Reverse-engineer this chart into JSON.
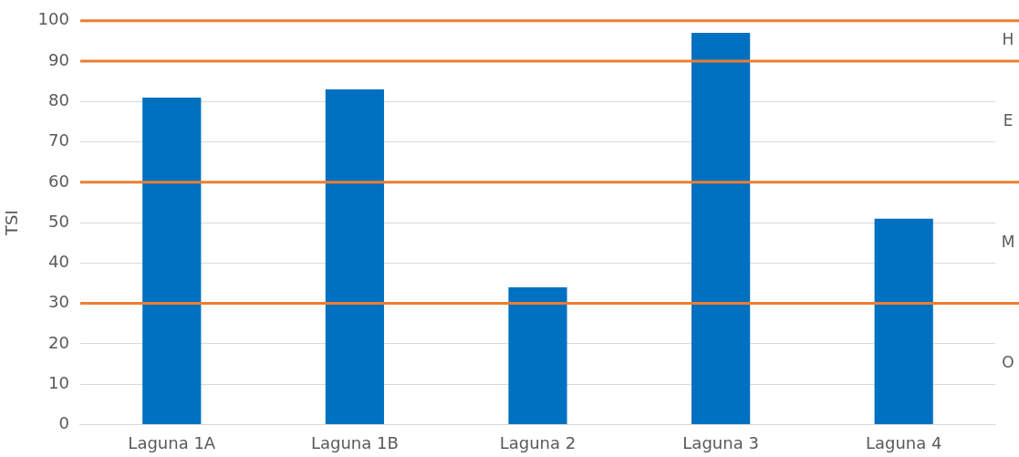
{
  "chart_data": {
    "type": "bar",
    "ylabel": "TSI",
    "categories": [
      "Laguna 1A",
      "Laguna 1B",
      "Laguna 2",
      "Laguna 3",
      "Laguna 4"
    ],
    "values": [
      81,
      83,
      34,
      97,
      51
    ],
    "color": "#0070c0",
    "ylim": [
      0,
      100
    ],
    "yticks": [
      0,
      10,
      20,
      30,
      40,
      50,
      60,
      70,
      80,
      90,
      100
    ],
    "grid": "y",
    "legend": false,
    "ref_lines": [
      {
        "axis": "y",
        "value": 30,
        "color": "#ed7d31"
      },
      {
        "axis": "y",
        "value": 60,
        "color": "#ed7d31"
      },
      {
        "axis": "y",
        "value": 90,
        "color": "#ed7d31"
      },
      {
        "axis": "y",
        "value": 100,
        "color": "#ed7d31"
      }
    ],
    "annotations": [
      "H",
      "E",
      "M",
      "O"
    ]
  }
}
